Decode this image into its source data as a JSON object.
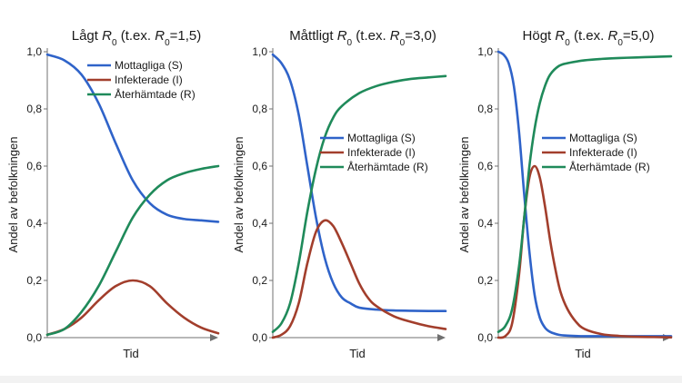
{
  "colors": {
    "susceptible": "#2f63c9",
    "infected": "#a23e2c",
    "recovered": "#1f8a5a",
    "axis": "#707070"
  },
  "chart_data": [
    {
      "type": "line",
      "title": {
        "prefix": "Lågt ",
        "symbol": "R",
        "sub": "0",
        "mid": " (t.ex. ",
        "symbol2": "R",
        "sub2": "0",
        "suffix": "=1,5)"
      },
      "xlabel": "Tid",
      "ylabel": "Andel av befolkningen",
      "ylim": [
        0,
        1
      ],
      "xlim": [
        0,
        10
      ],
      "yticks": [
        "0,0",
        "0,2",
        "0,4",
        "0,6",
        "0,8",
        "1,0"
      ],
      "legend_position": "top-right",
      "series": [
        {
          "name": "Mottagliga (S)",
          "key": "susceptible",
          "x": [
            0,
            1,
            2,
            3,
            4,
            5,
            6,
            7,
            8,
            9,
            10
          ],
          "y": [
            0.99,
            0.97,
            0.92,
            0.82,
            0.68,
            0.55,
            0.47,
            0.43,
            0.415,
            0.41,
            0.405
          ]
        },
        {
          "name": "Infekterade (I)",
          "key": "infected",
          "x": [
            0,
            1,
            2,
            3,
            4,
            5,
            6,
            7,
            8,
            9,
            10
          ],
          "y": [
            0.01,
            0.03,
            0.07,
            0.13,
            0.18,
            0.2,
            0.18,
            0.12,
            0.07,
            0.035,
            0.015
          ]
        },
        {
          "name": "Återhämtade (R)",
          "key": "recovered",
          "x": [
            0,
            1,
            2,
            3,
            4,
            5,
            6,
            7,
            8,
            9,
            10
          ],
          "y": [
            0.01,
            0.03,
            0.09,
            0.18,
            0.3,
            0.42,
            0.5,
            0.55,
            0.575,
            0.59,
            0.6
          ]
        }
      ]
    },
    {
      "type": "line",
      "title": {
        "prefix": "Måttligt ",
        "symbol": "R",
        "sub": "0",
        "mid": " (t.ex. ",
        "symbol2": "R",
        "sub2": "0",
        "suffix": "=3,0)"
      },
      "xlabel": "Tid",
      "ylabel": "Andel av befolkningen",
      "ylim": [
        0,
        1
      ],
      "xlim": [
        0,
        10
      ],
      "yticks": [
        "0,0",
        "0,2",
        "0,4",
        "0,6",
        "0,8",
        "1,0"
      ],
      "legend_position": "center-right",
      "series": [
        {
          "name": "Mottagliga (S)",
          "key": "susceptible",
          "x": [
            0,
            0.5,
            1,
            1.5,
            2,
            2.5,
            3,
            3.5,
            4,
            4.5,
            5,
            6,
            7,
            8,
            9,
            10
          ],
          "y": [
            0.99,
            0.96,
            0.9,
            0.78,
            0.6,
            0.42,
            0.28,
            0.19,
            0.14,
            0.12,
            0.105,
            0.098,
            0.095,
            0.094,
            0.093,
            0.093
          ]
        },
        {
          "name": "Infekterade (I)",
          "key": "infected",
          "x": [
            0,
            0.5,
            1,
            1.5,
            2,
            2.5,
            3,
            3.5,
            4,
            4.5,
            5,
            5.5,
            6,
            7,
            8,
            9,
            10
          ],
          "y": [
            0.0,
            0.01,
            0.04,
            0.12,
            0.26,
            0.37,
            0.41,
            0.39,
            0.33,
            0.26,
            0.19,
            0.14,
            0.11,
            0.075,
            0.055,
            0.04,
            0.03
          ]
        },
        {
          "name": "Återhämtade (R)",
          "key": "recovered",
          "x": [
            0,
            0.5,
            1,
            1.5,
            2,
            2.5,
            3,
            3.5,
            4,
            5,
            6,
            7,
            8,
            9,
            10
          ],
          "y": [
            0.02,
            0.05,
            0.12,
            0.26,
            0.44,
            0.59,
            0.7,
            0.77,
            0.81,
            0.855,
            0.88,
            0.895,
            0.905,
            0.91,
            0.915
          ]
        }
      ]
    },
    {
      "type": "line",
      "title": {
        "prefix": "Högt ",
        "symbol": "R",
        "sub": "0",
        "mid": " (t.ex. ",
        "symbol2": "R",
        "sub2": "0",
        "suffix": "=5,0)"
      },
      "xlabel": "Tid",
      "ylabel": "Andel av befolkningen",
      "ylim": [
        0,
        1
      ],
      "xlim": [
        0,
        10
      ],
      "yticks": [
        "0,0",
        "0,2",
        "0,4",
        "0,6",
        "0,8",
        "1,0"
      ],
      "legend_position": "center-right",
      "series": [
        {
          "name": "Mottagliga (S)",
          "key": "susceptible",
          "x": [
            0,
            0.3,
            0.6,
            0.9,
            1.2,
            1.5,
            1.8,
            2.1,
            2.4,
            2.7,
            3,
            3.5,
            4,
            5,
            6,
            7,
            8,
            9,
            10
          ],
          "y": [
            1.0,
            0.99,
            0.96,
            0.88,
            0.72,
            0.5,
            0.3,
            0.15,
            0.07,
            0.035,
            0.02,
            0.01,
            0.007,
            0.005,
            0.005,
            0.005,
            0.005,
            0.005,
            0.005
          ]
        },
        {
          "name": "Infekterade (I)",
          "key": "infected",
          "x": [
            0,
            0.4,
            0.8,
            1.2,
            1.5,
            1.8,
            2.1,
            2.4,
            2.7,
            3.0,
            3.3,
            3.6,
            4,
            4.5,
            5,
            6,
            7,
            8,
            9,
            10
          ],
          "y": [
            0.0,
            0.005,
            0.05,
            0.22,
            0.42,
            0.56,
            0.6,
            0.56,
            0.46,
            0.34,
            0.24,
            0.16,
            0.1,
            0.055,
            0.03,
            0.012,
            0.006,
            0.003,
            0.002,
            0.001
          ]
        },
        {
          "name": "Återhämtade (R)",
          "key": "recovered",
          "x": [
            0,
            0.4,
            0.8,
            1.2,
            1.5,
            1.8,
            2.1,
            2.4,
            2.7,
            3,
            3.5,
            4,
            5,
            6,
            7,
            8,
            9,
            10
          ],
          "y": [
            0.02,
            0.04,
            0.1,
            0.25,
            0.42,
            0.6,
            0.73,
            0.82,
            0.88,
            0.92,
            0.95,
            0.96,
            0.97,
            0.975,
            0.978,
            0.98,
            0.982,
            0.984
          ]
        }
      ]
    }
  ]
}
